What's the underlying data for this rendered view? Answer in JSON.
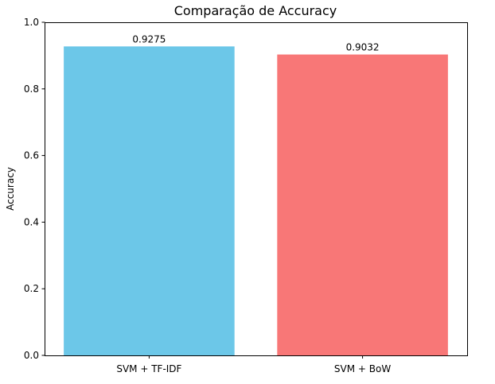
{
  "chart_data": {
    "type": "bar",
    "title": "Comparação de Accuracy",
    "xlabel": "",
    "ylabel": "Accuracy",
    "categories": [
      "SVM + TF-IDF",
      "SVM + BoW"
    ],
    "values": [
      0.9275,
      0.9032
    ],
    "data_labels": [
      "0.9275",
      "0.9032"
    ],
    "colors": [
      "#6CC7E8",
      "#F87777"
    ],
    "ylim": [
      0,
      1.0
    ],
    "yticks": [
      0.0,
      0.2,
      0.4,
      0.6,
      0.8,
      1.0
    ],
    "ytick_labels": [
      "0.0",
      "0.2",
      "0.4",
      "0.6",
      "0.8",
      "1.0"
    ],
    "grid": false,
    "legend": "none"
  }
}
